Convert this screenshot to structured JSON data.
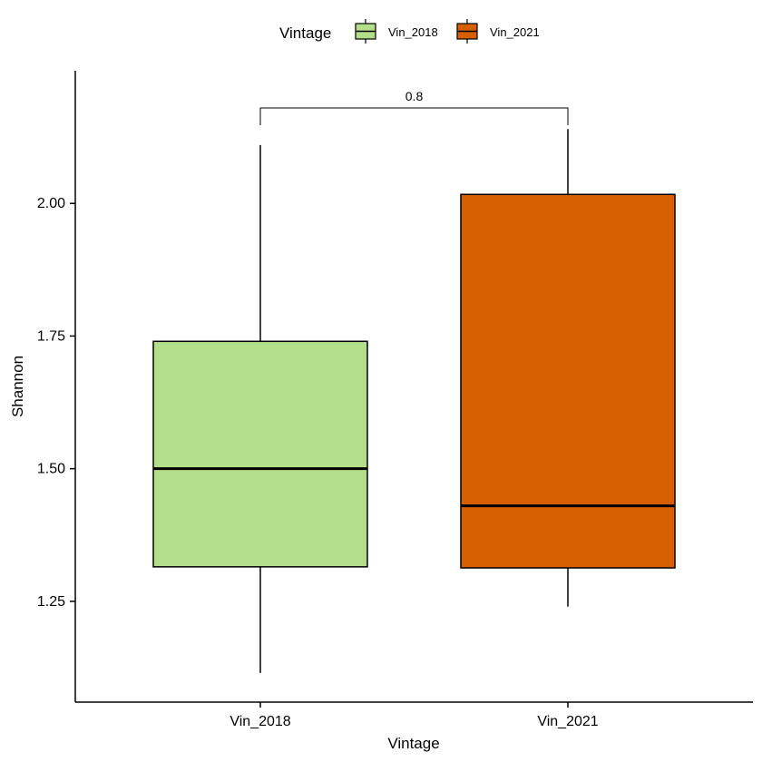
{
  "chart_data": {
    "type": "boxplot",
    "xlabel": "Vintage",
    "ylabel": "Shannon",
    "categories": [
      "Vin_2018",
      "Vin_2021"
    ],
    "ylim": [
      1.06,
      2.25
    ],
    "yticks": [
      "1.25",
      "1.50",
      "1.75",
      "2.00"
    ],
    "grid": false,
    "boxes": [
      {
        "category": "Vin_2018",
        "whisker_low": 1.115,
        "q1": 1.315,
        "median": 1.5,
        "q3": 1.74,
        "whisker_high": 2.11,
        "color": "#b3df8a"
      },
      {
        "category": "Vin_2021",
        "whisker_low": 1.24,
        "q1": 1.313,
        "median": 1.43,
        "q3": 2.017,
        "whisker_high": 2.14,
        "color": "#d65f00"
      }
    ],
    "legend": {
      "title": "Vintage",
      "position": "top",
      "items": [
        {
          "label": "Vin_2018",
          "color": "#b3df8a"
        },
        {
          "label": "Vin_2021",
          "color": "#d65f00"
        }
      ]
    },
    "comparison": {
      "from": "Vin_2018",
      "to": "Vin_2021",
      "label": "0.8",
      "y": 2.18
    }
  }
}
